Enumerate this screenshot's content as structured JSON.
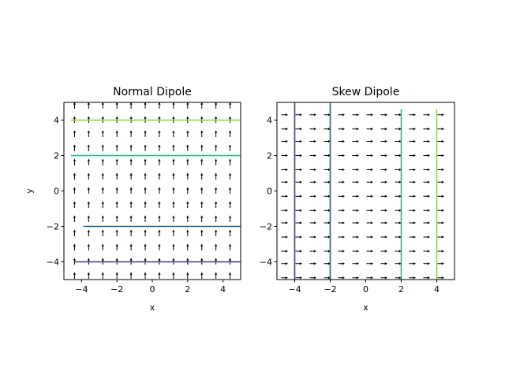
{
  "chart_data": [
    {
      "id": "normal",
      "type": "quiver",
      "title": "Normal Dipole",
      "xlabel": "x",
      "ylabel": "y",
      "xlim": [
        -5,
        5
      ],
      "ylim": [
        -5,
        5
      ],
      "xticks": [
        -4,
        -2,
        0,
        2,
        4
      ],
      "yticks": [
        -4,
        -2,
        0,
        2,
        4
      ],
      "grid": false,
      "field_direction": "+y",
      "grid_x": [
        -4.4,
        -3.6,
        -2.8,
        -2.0,
        -1.2,
        -0.4,
        0.4,
        1.2,
        2.0,
        2.8,
        3.6,
        4.4
      ],
      "grid_y": [
        -4.8,
        -4.0,
        -3.2,
        -2.4,
        -1.6,
        -0.8,
        0.0,
        0.8,
        1.6,
        2.4,
        3.2,
        4.0,
        4.8
      ],
      "contours": [
        {
          "orientation": "horizontal",
          "level": -4,
          "from": -4.4,
          "to": 5.0,
          "color": "#3b3f8c"
        },
        {
          "orientation": "horizontal",
          "level": -2,
          "from": -3.9,
          "to": 5.0,
          "color": "#255f7e"
        },
        {
          "orientation": "horizontal",
          "level": 2,
          "from": -4.6,
          "to": 5.0,
          "color": "#2fb47c"
        },
        {
          "orientation": "horizontal",
          "level": 4,
          "from": -4.6,
          "to": 5.0,
          "color": "#8fd13f"
        }
      ]
    },
    {
      "id": "skew",
      "type": "quiver",
      "title": "Skew Dipole",
      "xlabel": "x",
      "ylabel": "",
      "xlim": [
        -5,
        5
      ],
      "ylim": [
        -5,
        5
      ],
      "xticks": [
        -4,
        -2,
        0,
        2,
        4
      ],
      "yticks": [
        -4,
        -2,
        0,
        2,
        4
      ],
      "grid": false,
      "field_direction": "+x",
      "grid_x": [
        -4.6,
        -3.8,
        -3.0,
        -2.2,
        -1.4,
        -0.6,
        0.2,
        1.0,
        1.8,
        2.6,
        3.4,
        4.2
      ],
      "grid_y": [
        -4.9,
        -4.1,
        -3.4,
        -2.6,
        -1.8,
        -1.1,
        -0.3,
        0.5,
        1.2,
        2.0,
        2.8,
        3.5,
        4.3
      ],
      "contours": [
        {
          "orientation": "vertical",
          "level": -4,
          "from": -5.0,
          "to": 5.0,
          "color": "#3b3f8c"
        },
        {
          "orientation": "vertical",
          "level": -2,
          "from": -5.0,
          "to": 5.0,
          "color": "#255f7e"
        },
        {
          "orientation": "vertical",
          "level": 2,
          "from": -5.0,
          "to": 4.6,
          "color": "#2fb47c"
        },
        {
          "orientation": "vertical",
          "level": 4,
          "from": -5.0,
          "to": 4.6,
          "color": "#8fd13f"
        }
      ]
    }
  ]
}
